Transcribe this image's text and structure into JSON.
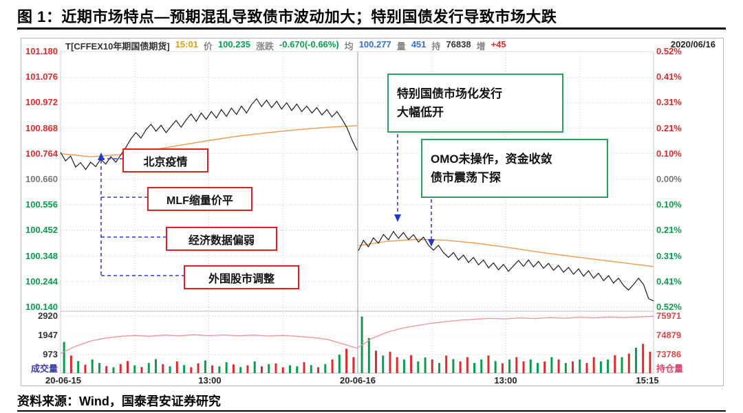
{
  "title": "图 1：近期市场特点—预期混乱导致债市波动加大；特别国债发行导致市场大跌",
  "source": "资料来源：Wind，国泰君安证券研究",
  "header": {
    "instrument": "T[CFFEX10年期国债期货]",
    "time": "15:01",
    "price_label": "价",
    "price": "100.235",
    "change_label": "涨跌",
    "change": "-0.670(-0.66%)",
    "avg_label": "均",
    "avg": "100.277",
    "vol_label": "量",
    "vol": "451",
    "oi_label": "持",
    "oi": "76838",
    "inc_label": "增",
    "inc": "+45",
    "date": "2020/06/16"
  },
  "callouts": {
    "red1": "北京疫情",
    "red2": "MLF缩量价平",
    "red3": "经济数据偏弱",
    "red4": "外围股市调整",
    "g1a": "特别国债市场化发行",
    "g1b": "大幅低开",
    "g2a": "OMO未操作，资金收敛",
    "g2b": "债市震荡下探"
  },
  "colors": {
    "up_red": "#e02a2a",
    "down_green": "#089e4e",
    "neutral": "#777777",
    "price_line": "#1a1a1a",
    "ma_line": "#f09a4e",
    "oi_line": "#ef8f9b",
    "arrow_blue": "#2636c8",
    "grid": "#c8c8c8",
    "vol_title": "#3b3bb0",
    "oi_title": "#d04a6e",
    "oi_num": "#e04848",
    "vol_num": "#333333"
  },
  "chart_data": {
    "type": "line",
    "instrument": "T[CFFEX10年期国债期货] 10年期国债期货分时",
    "sessions": [
      "20-06-15",
      "20-06-16"
    ],
    "x_labels": [
      "20-06-15",
      "13:00",
      "20-06-16",
      "13:00",
      "15:15"
    ],
    "price_gridlines": [
      "101.180",
      "101.076",
      "100.972",
      "100.868",
      "100.764",
      "100.660",
      "100.556",
      "100.452",
      "100.348",
      "100.244",
      "100.140"
    ],
    "pct_gridlines": [
      "0.52%",
      "0.41%",
      "0.31%",
      "0.21%",
      "0.10%",
      "0.00%",
      "0.10%",
      "0.21%",
      "0.31%",
      "0.41%",
      "0.52%"
    ],
    "price_range": [
      101.18,
      100.14
    ],
    "volume_axis": [
      "2920",
      "1947",
      "973"
    ],
    "volume_axis_title": "成交量",
    "volume_max": 2920,
    "oi_axis": [
      "75971",
      "74879",
      "73786"
    ],
    "oi_axis_title": "持仓量",
    "day1_price": [
      100.77,
      100.735,
      100.755,
      100.71,
      100.728,
      100.7,
      100.73,
      100.712,
      100.742,
      100.722,
      100.752,
      100.73,
      100.76,
      100.79,
      100.825,
      100.85,
      100.828,
      100.862,
      100.884,
      100.856,
      100.88,
      100.85,
      100.876,
      100.9,
      100.872,
      100.902,
      100.926,
      100.896,
      100.93,
      100.904,
      100.936,
      100.91,
      100.944,
      100.916,
      100.95,
      100.924,
      100.958,
      100.93,
      100.964,
      100.988,
      100.956,
      100.982,
      100.952,
      100.978,
      100.946,
      100.972,
      100.94,
      100.966,
      100.936,
      100.958,
      100.93,
      100.952,
      100.922,
      100.944,
      100.914,
      100.936,
      100.905,
      100.87,
      100.82,
      100.778
    ],
    "day2_price": [
      100.37,
      100.412,
      100.386,
      100.422,
      100.4,
      100.436,
      100.414,
      100.448,
      100.42,
      100.444,
      100.415,
      100.435,
      100.405,
      100.425,
      100.392,
      100.372,
      100.392,
      100.362,
      100.342,
      100.362,
      100.332,
      100.352,
      100.322,
      100.342,
      100.312,
      100.332,
      100.3,
      100.32,
      100.292,
      100.314,
      100.286,
      100.308,
      100.33,
      100.306,
      100.332,
      100.304,
      100.326,
      100.298,
      100.318,
      100.29,
      100.31,
      100.282,
      100.302,
      100.274,
      100.296,
      100.266,
      100.288,
      100.258,
      100.278,
      100.248,
      100.268,
      100.238,
      100.258,
      100.228,
      100.21,
      100.232,
      100.258,
      100.232,
      100.175,
      100.165
    ],
    "day1_ma": [
      100.765,
      100.752,
      100.76,
      100.778,
      100.798,
      100.818,
      100.836,
      100.85,
      100.862,
      100.872,
      100.878
    ],
    "day2_ma": [
      100.39,
      100.408,
      100.416,
      100.412,
      100.4,
      100.384,
      100.366,
      100.35,
      100.335,
      100.32,
      100.305
    ],
    "open_interest": [
      73850,
      74250,
      74550,
      74720,
      74820,
      74870,
      74830,
      74890,
      74850,
      74910,
      74860,
      74900,
      74850,
      74890,
      74840,
      74870,
      74820,
      74760,
      74650,
      74400,
      74150,
      74700,
      75050,
      75280,
      75430,
      75560,
      75660,
      75740,
      75800,
      75840,
      75810,
      75870,
      75830,
      75890,
      75850,
      75910,
      75870,
      75920,
      75890,
      75930,
      75960
    ],
    "oi_scale": {
      "top_value": 75971,
      "top_y_value_step": 1092
    },
    "day1_volume": {
      "heights": [
        1600,
        900,
        620,
        430,
        700,
        520,
        360,
        300,
        460,
        620,
        400,
        310,
        520,
        720,
        460,
        350,
        600,
        410,
        300,
        500,
        650,
        400,
        350,
        560,
        450,
        310,
        400,
        600,
        350,
        460,
        500,
        300,
        400,
        350,
        560,
        410,
        300,
        460,
        700,
        950,
        1250,
        820
      ],
      "colors": "grgrggrgrrgrggrgrgrrgrggrgrgrgrrggrgrgrgrr"
    },
    "day2_volume": {
      "heights": [
        2900,
        1800,
        1150,
        900,
        1100,
        820,
        700,
        920,
        600,
        800,
        700,
        520,
        900,
        720,
        600,
        820,
        520,
        700,
        900,
        620,
        500,
        700,
        820,
        600,
        700,
        520,
        600,
        820,
        700,
        520,
        600,
        700,
        520,
        820,
        600,
        700,
        920,
        820,
        1000,
        1300,
        1500,
        1100
      ],
      "colors": "ggrgrrgrggrgrgrrggrgrgrrggrgrgrgrrggrgrgrr"
    }
  }
}
